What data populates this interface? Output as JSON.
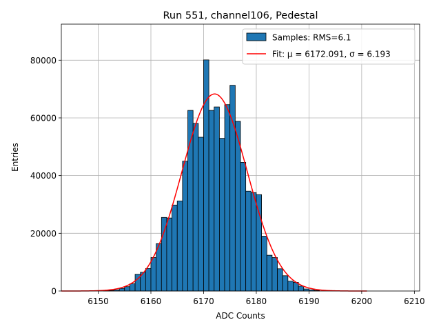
{
  "chart_data": {
    "type": "bar",
    "title": "Run 551, channel106, Pedestal",
    "xlabel": "ADC Counts",
    "ylabel": "Entries",
    "xlim": [
      6143,
      6211
    ],
    "ylim": [
      0,
      92500
    ],
    "x_ticks": [
      6150,
      6160,
      6170,
      6180,
      6190,
      6200,
      6210
    ],
    "y_ticks": [
      0,
      20000,
      40000,
      60000,
      80000
    ],
    "grid": true,
    "legend_position": "top-right",
    "colors": {
      "bar_fill": "#1f77b4",
      "bar_edge": "#000000",
      "fit_line": "#ff0000"
    },
    "histogram": {
      "name": "Samples: RMS=6.1",
      "bin_width": 1,
      "bin_starts": [
        6151,
        6152,
        6153,
        6154,
        6155,
        6156,
        6157,
        6158,
        6159,
        6160,
        6161,
        6162,
        6163,
        6164,
        6165,
        6166,
        6167,
        6168,
        6169,
        6170,
        6171,
        6172,
        6173,
        6174,
        6175,
        6176,
        6177,
        6178,
        6179,
        6180,
        6181,
        6182,
        6183,
        6184,
        6185,
        6186,
        6187,
        6188,
        6189,
        6190,
        6191
      ],
      "counts": [
        100,
        200,
        400,
        900,
        1500,
        2500,
        5800,
        6500,
        7800,
        11600,
        16400,
        25500,
        25300,
        29800,
        31200,
        45000,
        62600,
        58100,
        53300,
        80100,
        62600,
        63800,
        52900,
        64600,
        71300,
        58800,
        44600,
        34600,
        34100,
        33400,
        19000,
        12400,
        11600,
        7700,
        5300,
        3400,
        3000,
        1700,
        700,
        400,
        200
      ]
    },
    "fit": {
      "name": "Fit: μ = 6172.091, σ = 6.193",
      "mu": 6172.091,
      "sigma": 6.193,
      "amplitude": 68300,
      "x_range": [
        6143,
        6201
      ]
    }
  }
}
